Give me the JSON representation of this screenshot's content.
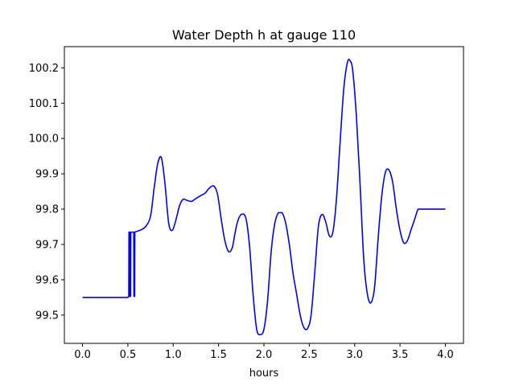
{
  "chart_data": {
    "type": "line",
    "title": "Water Depth h at gauge 110",
    "xlabel": "hours",
    "ylabel": "",
    "xlim": [
      -0.2,
      4.2
    ],
    "ylim": [
      99.42,
      100.26
    ],
    "xticks": [
      0.0,
      0.5,
      1.0,
      1.5,
      2.0,
      2.5,
      3.0,
      3.5,
      4.0
    ],
    "xtick_labels": [
      "0.0",
      "0.5",
      "1.0",
      "1.5",
      "2.0",
      "2.5",
      "3.0",
      "3.5",
      "4.0"
    ],
    "yticks": [
      99.5,
      99.6,
      99.7,
      99.8,
      99.9,
      100.0,
      100.1,
      100.2
    ],
    "ytick_labels": [
      "99.5",
      "99.6",
      "99.7",
      "99.8",
      "99.9",
      "100.0",
      "100.1",
      "100.2"
    ],
    "grid": false,
    "series": [
      {
        "color": "#0000ff",
        "x": [
          0.0,
          0.5,
          0.51,
          0.512,
          0.52,
          0.522,
          0.53,
          0.532,
          0.565,
          0.567,
          0.575,
          0.577,
          0.6,
          0.65,
          0.7,
          0.75,
          0.79,
          0.83,
          0.87,
          0.91,
          0.95,
          0.99,
          1.03,
          1.07,
          1.11,
          1.15,
          1.2,
          1.25,
          1.3,
          1.35,
          1.4,
          1.45,
          1.49,
          1.53,
          1.57,
          1.61,
          1.65,
          1.68,
          1.71,
          1.75,
          1.8,
          1.84,
          1.88,
          1.92,
          1.96,
          2.0,
          2.04,
          2.08,
          2.12,
          2.16,
          2.2,
          2.24,
          2.28,
          2.32,
          2.36,
          2.4,
          2.44,
          2.48,
          2.52,
          2.56,
          2.6,
          2.64,
          2.68,
          2.72,
          2.76,
          2.8,
          2.84,
          2.88,
          2.92,
          2.95,
          2.98,
          3.02,
          3.06,
          3.1,
          3.14,
          3.18,
          3.22,
          3.26,
          3.3,
          3.34,
          3.38,
          3.42,
          3.46,
          3.5,
          3.54,
          3.58,
          3.62,
          3.66,
          3.7,
          3.74,
          3.78,
          3.82,
          3.86,
          3.9,
          3.94,
          3.98,
          4.0
        ],
        "y": [
          99.55,
          99.55,
          99.553,
          99.735,
          99.735,
          99.553,
          99.553,
          99.735,
          99.735,
          99.553,
          99.553,
          99.735,
          99.737,
          99.742,
          99.752,
          99.78,
          99.86,
          99.93,
          99.945,
          99.87,
          99.76,
          99.74,
          99.77,
          99.81,
          99.828,
          99.825,
          99.822,
          99.83,
          99.838,
          99.845,
          99.86,
          99.865,
          99.84,
          99.77,
          99.71,
          99.68,
          99.69,
          99.73,
          99.765,
          99.785,
          99.775,
          99.7,
          99.56,
          99.46,
          99.445,
          99.46,
          99.54,
          99.68,
          99.76,
          99.79,
          99.79,
          99.76,
          99.7,
          99.62,
          99.56,
          99.5,
          99.465,
          99.462,
          99.5,
          99.62,
          99.75,
          99.785,
          99.765,
          99.725,
          99.735,
          99.83,
          99.99,
          100.14,
          100.215,
          100.22,
          100.19,
          100.06,
          99.87,
          99.66,
          99.56,
          99.535,
          99.58,
          99.72,
          99.84,
          99.905,
          99.91,
          99.875,
          99.8,
          99.74,
          99.705,
          99.71,
          99.74,
          99.77,
          99.8,
          99.8,
          99.8,
          99.8,
          99.8,
          99.8,
          99.8,
          99.8,
          99.8
        ]
      }
    ]
  }
}
